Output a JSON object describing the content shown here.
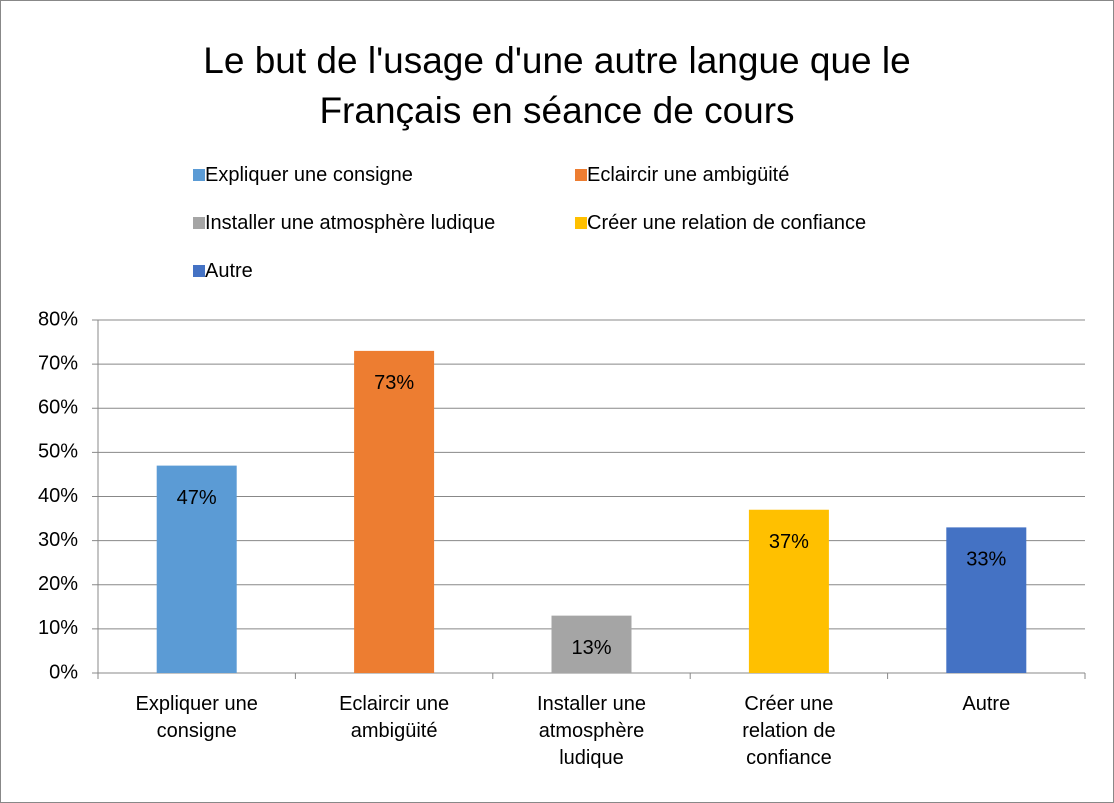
{
  "chart_data": {
    "type": "bar",
    "title": "Le but de l'usage d'une autre langue que le Français en séance de cours",
    "categories": [
      "Expliquer une consigne",
      "Eclaircir une ambigüité",
      "Installer une atmosphère ludique",
      "Créer une relation de confiance",
      "Autre"
    ],
    "values": [
      47,
      73,
      13,
      37,
      33
    ],
    "value_labels": [
      "47%",
      "73%",
      "13%",
      "37%",
      "33%"
    ],
    "colors": [
      "#5b9bd5",
      "#ed7d31",
      "#a5a5a5",
      "#ffc000",
      "#4472c4"
    ],
    "ylim": [
      0,
      80
    ],
    "yticks": [
      {
        "value": 0,
        "label": "0%"
      },
      {
        "value": 10,
        "label": "10%"
      },
      {
        "value": 20,
        "label": "20%"
      },
      {
        "value": 30,
        "label": "30%"
      },
      {
        "value": 40,
        "label": "40%"
      },
      {
        "value": 50,
        "label": "50%"
      },
      {
        "value": 60,
        "label": "60%"
      },
      {
        "value": 70,
        "label": "70%"
      },
      {
        "value": 80,
        "label": "80%"
      }
    ],
    "grid": true,
    "legend": "top"
  }
}
